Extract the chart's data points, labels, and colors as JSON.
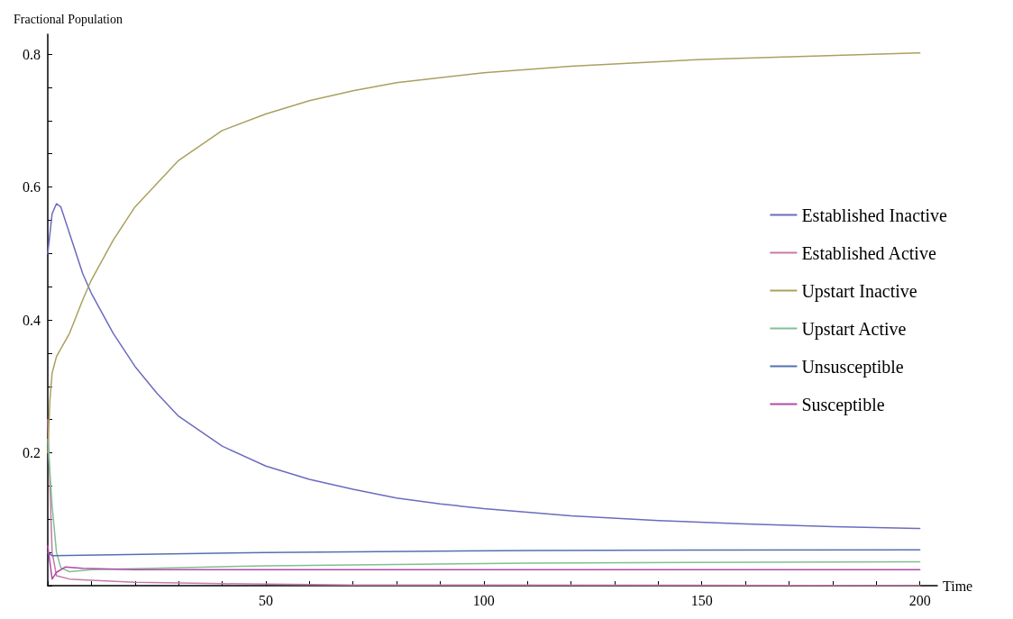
{
  "chart_data": {
    "type": "line",
    "xlabel": "Time",
    "ylabel": "Fractional Population",
    "xlim": [
      0,
      204
    ],
    "ylim": [
      0,
      0.83
    ],
    "xticks": [
      {
        "value": 0,
        "label": null
      },
      {
        "value": 10,
        "label": null
      },
      {
        "value": 20,
        "label": null
      },
      {
        "value": 30,
        "label": null
      },
      {
        "value": 40,
        "label": null
      },
      50,
      {
        "value": 60,
        "label": null
      },
      {
        "value": 70,
        "label": null
      },
      {
        "value": 80,
        "label": null
      },
      {
        "value": 90,
        "label": null
      },
      100,
      {
        "value": 110,
        "label": null
      },
      {
        "value": 120,
        "label": null
      },
      {
        "value": 130,
        "label": null
      },
      {
        "value": 140,
        "label": null
      },
      150,
      {
        "value": 160,
        "label": null
      },
      {
        "value": 170,
        "label": null
      },
      {
        "value": 180,
        "label": null
      },
      {
        "value": 190,
        "label": null
      },
      200
    ],
    "yticks": [
      {
        "value": 0,
        "label": null
      },
      {
        "value": 0.05,
        "label": null
      },
      {
        "value": 0.1,
        "label": null
      },
      {
        "value": 0.15,
        "label": null
      },
      0.2,
      {
        "value": 0.25,
        "label": null
      },
      {
        "value": 0.3,
        "label": null
      },
      {
        "value": 0.35,
        "label": null
      },
      0.4,
      {
        "value": 0.45,
        "label": null
      },
      {
        "value": 0.5,
        "label": null
      },
      {
        "value": 0.55,
        "label": null
      },
      0.6,
      {
        "value": 0.65,
        "label": null
      },
      {
        "value": 0.7,
        "label": null
      },
      {
        "value": 0.75,
        "label": null
      },
      0.8
    ],
    "grid": false,
    "legend": "right",
    "marker": "none",
    "line_style": "solid",
    "series": [
      {
        "name": "Established Inactive",
        "color": "#6b6bbf",
        "x": [
          0,
          1,
          2,
          3,
          5,
          8,
          10,
          15,
          20,
          25,
          30,
          40,
          50,
          60,
          70,
          80,
          90,
          100,
          120,
          140,
          160,
          180,
          200
        ],
        "values": [
          0.5,
          0.56,
          0.575,
          0.57,
          0.53,
          0.47,
          0.44,
          0.38,
          0.33,
          0.29,
          0.255,
          0.21,
          0.18,
          0.16,
          0.145,
          0.132,
          0.123,
          0.116,
          0.105,
          0.098,
          0.093,
          0.089,
          0.086
        ]
      },
      {
        "name": "Established Active",
        "color": "#c47aa8",
        "x": [
          0,
          1,
          2,
          5,
          10,
          20,
          40,
          70,
          100,
          200
        ],
        "values": [
          0.25,
          0.05,
          0.015,
          0.01,
          0.008,
          0.005,
          0.003,
          0.001,
          0.001,
          0
        ]
      },
      {
        "name": "Upstart Inactive",
        "color": "#aaa060",
        "x": [
          0,
          0.5,
          1,
          2,
          5,
          8,
          10,
          15,
          20,
          30,
          40,
          50,
          60,
          70,
          80,
          100,
          120,
          150,
          200
        ],
        "values": [
          0.2,
          0.28,
          0.32,
          0.345,
          0.38,
          0.43,
          0.46,
          0.52,
          0.57,
          0.64,
          0.685,
          0.71,
          0.73,
          0.745,
          0.757,
          0.772,
          0.782,
          0.792,
          0.802
        ]
      },
      {
        "name": "Upstart Active",
        "color": "#80c090",
        "x": [
          0,
          1,
          2,
          3,
          5,
          10,
          50,
          110,
          200
        ],
        "values": [
          0.22,
          0.12,
          0.05,
          0.027,
          0.021,
          0.024,
          0.03,
          0.034,
          0.036
        ]
      },
      {
        "name": "Unsusceptible",
        "color": "#5570b0",
        "x": [
          0,
          1,
          50,
          110,
          200
        ],
        "values": [
          0.05,
          0.045,
          0.05,
          0.053,
          0.054
        ]
      },
      {
        "name": "Susceptible",
        "color": "#b04aa8",
        "x": [
          0,
          1,
          2,
          4,
          8,
          20,
          200
        ],
        "values": [
          0.06,
          0.01,
          0.02,
          0.028,
          0.026,
          0.024,
          0.024
        ]
      }
    ]
  }
}
